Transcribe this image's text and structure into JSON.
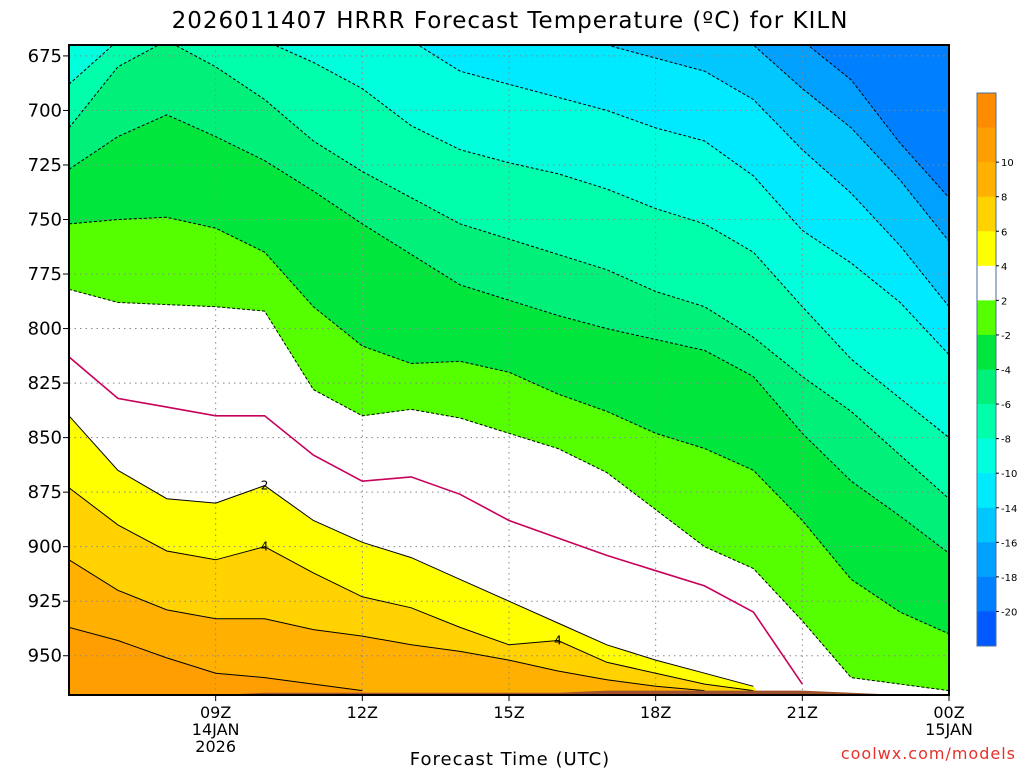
{
  "chart_data": {
    "type": "contour",
    "title": "2026011407 HRRR Forecast Temperature (ºC) for KILN",
    "xlabel": "Forecast Time (UTC)",
    "ylabel": "",
    "y_axis": "pressure (hPa), decreasing upward",
    "x_hours": [
      6,
      7,
      8,
      9,
      10,
      11,
      12,
      13,
      14,
      15,
      16,
      17,
      18,
      19,
      20,
      21,
      22,
      23,
      24
    ],
    "xlim": [
      6,
      24
    ],
    "ylim": [
      968,
      670
    ],
    "y_ticks": [
      675,
      700,
      725,
      750,
      775,
      800,
      825,
      850,
      875,
      900,
      925,
      950
    ],
    "y_tick_labels": [
      "675",
      "700",
      "725",
      "750",
      "775",
      "800",
      "825",
      "850",
      "875",
      "900",
      "925",
      "950"
    ],
    "x_ticks": [
      {
        "hour": 9,
        "labels": [
          "09Z",
          "14JAN",
          "2026"
        ]
      },
      {
        "hour": 12,
        "labels": [
          "12Z"
        ]
      },
      {
        "hour": 15,
        "labels": [
          "15Z"
        ]
      },
      {
        "hour": 18,
        "labels": [
          "18Z"
        ]
      },
      {
        "hour": 21,
        "labels": [
          "21Z"
        ]
      },
      {
        "hour": 24,
        "labels": [
          "00Z",
          "15JAN"
        ]
      }
    ],
    "isotherms_hPa": [
      {
        "temp": 8,
        "values": [
          937,
          943,
          951,
          958,
          960,
          963,
          966,
          null,
          null,
          null,
          null,
          null,
          null,
          null,
          null,
          null,
          null,
          null,
          null
        ]
      },
      {
        "temp": 6,
        "values": [
          906,
          920,
          929,
          933,
          933,
          938,
          941,
          945,
          948,
          952,
          957,
          961,
          964,
          966,
          null,
          null,
          null,
          null,
          null
        ]
      },
      {
        "temp": 4,
        "values": [
          873,
          890,
          902,
          906,
          900,
          912,
          923,
          928,
          937,
          945,
          943,
          953,
          958,
          963,
          966,
          null,
          null,
          null,
          null
        ]
      },
      {
        "temp": 2,
        "values": [
          840,
          865,
          878,
          880,
          872,
          888,
          898,
          905,
          915,
          925,
          935,
          945,
          952,
          958,
          964,
          null,
          null,
          null,
          null
        ]
      },
      {
        "temp": 0,
        "values": [
          813,
          832,
          836,
          840,
          840,
          858,
          870,
          868,
          876,
          888,
          896,
          904,
          911,
          918,
          930,
          963,
          null,
          null,
          null
        ]
      },
      {
        "temp": -2,
        "values": [
          782,
          788,
          789,
          790,
          792,
          828,
          840,
          837,
          841,
          848,
          855,
          866,
          883,
          900,
          910,
          934,
          960,
          963,
          966
        ]
      },
      {
        "temp": -4,
        "values": [
          752,
          750,
          749,
          754,
          765,
          790,
          808,
          816,
          815,
          820,
          830,
          838,
          848,
          855,
          865,
          888,
          915,
          930,
          940
        ]
      },
      {
        "temp": -6,
        "values": [
          727,
          712,
          702,
          712,
          723,
          737,
          752,
          766,
          780,
          787,
          794,
          800,
          805,
          810,
          822,
          848,
          870,
          886,
          903
        ]
      },
      {
        "temp": -8,
        "values": [
          708,
          680,
          668,
          680,
          695,
          714,
          728,
          740,
          752,
          759,
          766,
          773,
          783,
          790,
          804,
          822,
          838,
          858,
          878
        ]
      },
      {
        "temp": -10,
        "values": [
          688,
          668,
          668,
          668,
          668,
          678,
          690,
          707,
          718,
          724,
          729,
          736,
          745,
          752,
          765,
          790,
          814,
          832,
          850
        ]
      },
      {
        "temp": -12,
        "values": [
          null,
          null,
          null,
          null,
          null,
          null,
          null,
          668,
          682,
          688,
          694,
          700,
          708,
          714,
          730,
          755,
          770,
          788,
          812
        ]
      },
      {
        "temp": -14,
        "values": [
          null,
          null,
          null,
          null,
          null,
          null,
          null,
          null,
          null,
          null,
          null,
          670,
          676,
          682,
          695,
          718,
          738,
          762,
          790
        ]
      },
      {
        "temp": -16,
        "values": [
          null,
          null,
          null,
          null,
          null,
          null,
          null,
          null,
          null,
          null,
          null,
          null,
          null,
          668,
          670,
          690,
          708,
          732,
          760
        ]
      },
      {
        "temp": -18,
        "values": [
          null,
          null,
          null,
          null,
          null,
          null,
          null,
          null,
          null,
          null,
          null,
          null,
          null,
          null,
          null,
          668,
          686,
          715,
          740
        ]
      }
    ],
    "ground_level_hPa": [
      968,
      968,
      968,
      968,
      967,
      967,
      967,
      967,
      967,
      967,
      967,
      966,
      966,
      966,
      966,
      966,
      967,
      968,
      968
    ],
    "contour_labels": [
      {
        "text": "2",
        "hour": 10.0,
        "hPa": 872
      },
      {
        "text": "4",
        "hour": 10.0,
        "hPa": 900
      },
      {
        "text": "4",
        "hour": 16.0,
        "hPa": 943
      }
    ],
    "colorbar": {
      "labels": [
        "10",
        "8",
        "6",
        "4",
        "2",
        "-2",
        "-4",
        "-6",
        "-8",
        "-10",
        "-14",
        "-16",
        "-18",
        "-20"
      ],
      "bins": [
        {
          "lo": 10,
          "hi": 12,
          "color": "#ff8c00"
        },
        {
          "lo": 8,
          "hi": 10,
          "color": "#ff9e00"
        },
        {
          "lo": 6,
          "hi": 8,
          "color": "#ffb000"
        },
        {
          "lo": 4,
          "hi": 6,
          "color": "#ffd200"
        },
        {
          "lo": 2,
          "hi": 4,
          "color": "#ffff00"
        },
        {
          "lo": -2,
          "hi": 2,
          "color": "#ffffff"
        },
        {
          "lo": -4,
          "hi": -2,
          "color": "#55ff00"
        },
        {
          "lo": -6,
          "hi": -4,
          "color": "#00e63c"
        },
        {
          "lo": -8,
          "hi": -6,
          "color": "#00f07a"
        },
        {
          "lo": -10,
          "hi": -8,
          "color": "#00ffaa"
        },
        {
          "lo": -12,
          "hi": -10,
          "color": "#00ffdc"
        },
        {
          "lo": -14,
          "hi": -12,
          "color": "#00eaff"
        },
        {
          "lo": -16,
          "hi": -14,
          "color": "#00c8ff"
        },
        {
          "lo": -18,
          "hi": -16,
          "color": "#00a0ff"
        },
        {
          "lo": -20,
          "hi": -18,
          "color": "#0080ff"
        },
        {
          "lo": -22,
          "hi": -20,
          "color": "#005aff"
        }
      ]
    }
  },
  "colors": {
    "isotherm_solid": "#000000",
    "freezing_line": "#c8005a",
    "ground": "#a0522d",
    "grid": "#888888"
  },
  "credit": "coolwx.com/models"
}
